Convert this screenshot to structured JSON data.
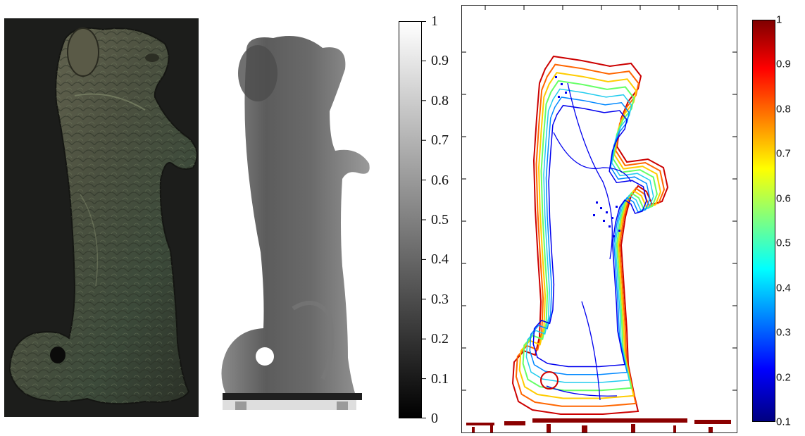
{
  "figure": {
    "grayscale_colorbar": {
      "ticks": [
        "1",
        "0.9",
        "0.8",
        "0.7",
        "0.6",
        "0.5",
        "0.4",
        "0.3",
        "0.2",
        "0.1",
        "0"
      ]
    },
    "jet_colorbar": {
      "ticks": [
        "1",
        "0.9",
        "0.8",
        "0.7",
        "0.6",
        "0.5",
        "0.4",
        "0.3",
        "0.2",
        "0.1"
      ]
    },
    "contour_colors": [
      "#cc0000",
      "#ff6600",
      "#ffcc00",
      "#66ff66",
      "#22ccee",
      "#0088ff",
      "#0000ee"
    ]
  }
}
